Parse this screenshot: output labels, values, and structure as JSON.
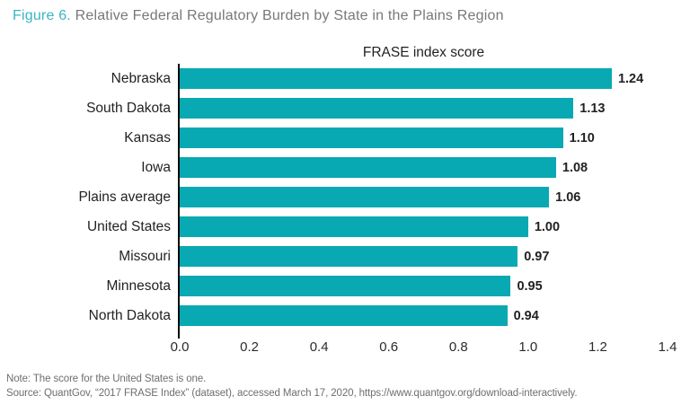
{
  "figure_title": {
    "prefix": "Figure 6.",
    "rest": " Relative Federal Regulatory Burden by State in the Plains Region"
  },
  "chart_data": {
    "type": "bar",
    "orientation": "horizontal",
    "title": "FRASE index score",
    "categories": [
      "Nebraska",
      "South Dakota",
      "Kansas",
      "Iowa",
      "Plains average",
      "United States",
      "Missouri",
      "Minnesota",
      "North Dakota"
    ],
    "values": [
      1.24,
      1.13,
      1.1,
      1.08,
      1.06,
      1.0,
      0.97,
      0.95,
      0.94
    ],
    "value_labels": [
      "1.24",
      "1.13",
      "1.10",
      "1.08",
      "1.06",
      "1.00",
      "0.97",
      "0.95",
      "0.94"
    ],
    "xlim": [
      0,
      1.4
    ],
    "x_ticks": [
      "0.0",
      "0.2",
      "0.4",
      "0.6",
      "0.8",
      "1.0",
      "1.2",
      "1.4"
    ],
    "xlabel": "",
    "ylabel": "",
    "grid": false,
    "legend": false,
    "bar_color": "#08a9b2"
  },
  "notes": {
    "note": "Note: The score for the United States is one.",
    "source": "Source: QuantGov, “2017 FRASE Index” (dataset), accessed March 17, 2020, https://www.quantgov.org/download-interactively."
  },
  "colors": {
    "bar": "#08a9b2",
    "figure_label": "#3ab4c4",
    "title_text": "#77787b",
    "chart_text": "#231f20",
    "note_text": "#6d6e71",
    "axis_line": "#0b0b0b"
  }
}
